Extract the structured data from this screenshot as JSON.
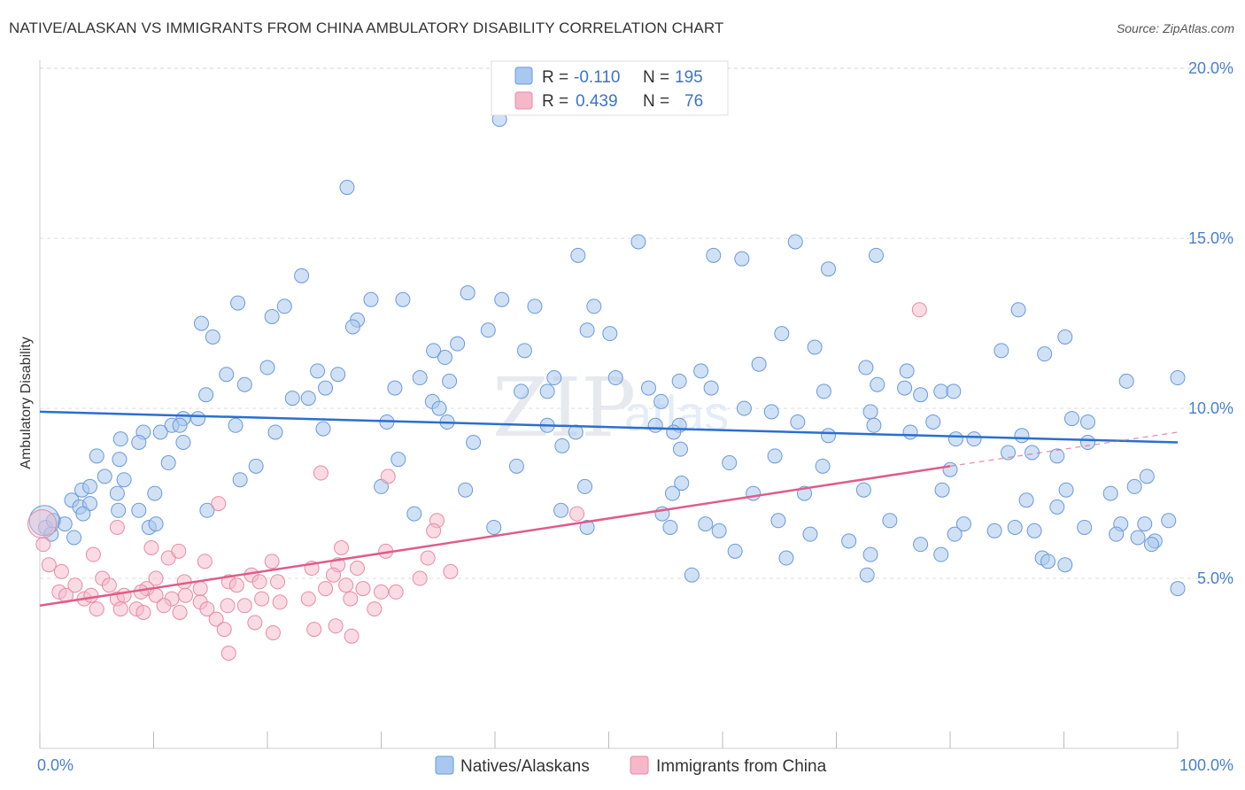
{
  "title": "NATIVE/ALASKAN VS IMMIGRANTS FROM CHINA AMBULATORY DISABILITY CORRELATION CHART",
  "source": "Source: ZipAtlas.com",
  "watermark": {
    "zip": "ZIP",
    "atlas": "atlas"
  },
  "legend": {
    "r_label": "R =",
    "n_label": "N =",
    "series1": {
      "r": "-0.110",
      "n": "195"
    },
    "series2": {
      "r": "0.439",
      "n": "76"
    }
  },
  "colors": {
    "blue_fill": "#a9c8ef",
    "blue_stroke": "#6a9ad8",
    "blue_line": "#2a6fd0",
    "pink_fill": "#f5b8c9",
    "pink_stroke": "#e88aa6",
    "pink_line": "#e05c8a",
    "tick_text": "#4a7fd0",
    "grid": "#dddddd"
  },
  "chart_data": {
    "type": "scatter",
    "xlabel": "",
    "ylabel": "Ambulatory Disability",
    "xlim": [
      0,
      100
    ],
    "ylim": [
      0,
      20.5
    ],
    "x_tick_labels": [
      "0.0%",
      "100.0%"
    ],
    "y_ticks": [
      5,
      10,
      15,
      20
    ],
    "y_tick_labels": [
      "5.0%",
      "10.0%",
      "15.0%",
      "20.0%"
    ],
    "grid": true,
    "legend_position": "top-center",
    "series": [
      {
        "name": "Natives/Alaskans",
        "color": "#a9c8ef",
        "trend": {
          "x": [
            0,
            100
          ],
          "y": [
            9.9,
            9.0
          ],
          "dashed_from": null
        },
        "points": [
          [
            40.4,
            18.5
          ],
          [
            27.0,
            16.5
          ],
          [
            52.6,
            14.9
          ],
          [
            66.4,
            14.9
          ],
          [
            47.3,
            14.5
          ],
          [
            59.2,
            14.5
          ],
          [
            61.7,
            14.4
          ],
          [
            73.5,
            14.5
          ],
          [
            69.3,
            14.1
          ],
          [
            23.0,
            13.9
          ],
          [
            37.6,
            13.4
          ],
          [
            40.6,
            13.2
          ],
          [
            17.4,
            13.1
          ],
          [
            31.9,
            13.2
          ],
          [
            29.1,
            13.2
          ],
          [
            21.5,
            13.0
          ],
          [
            43.5,
            13.0
          ],
          [
            48.7,
            13.0
          ],
          [
            86.0,
            12.9
          ],
          [
            20.4,
            12.7
          ],
          [
            27.9,
            12.6
          ],
          [
            14.2,
            12.5
          ],
          [
            27.5,
            12.4
          ],
          [
            39.4,
            12.3
          ],
          [
            48.1,
            12.3
          ],
          [
            50.1,
            12.2
          ],
          [
            15.2,
            12.1
          ],
          [
            65.2,
            12.2
          ],
          [
            90.1,
            12.1
          ],
          [
            36.7,
            11.9
          ],
          [
            68.1,
            11.8
          ],
          [
            34.6,
            11.7
          ],
          [
            42.6,
            11.7
          ],
          [
            84.5,
            11.7
          ],
          [
            88.3,
            11.6
          ],
          [
            35.6,
            11.5
          ],
          [
            63.2,
            11.3
          ],
          [
            58.1,
            11.1
          ],
          [
            72.6,
            11.2
          ],
          [
            76.2,
            11.1
          ],
          [
            24.4,
            11.1
          ],
          [
            20.0,
            11.2
          ],
          [
            16.4,
            11.0
          ],
          [
            26.2,
            11.0
          ],
          [
            33.4,
            10.9
          ],
          [
            36.0,
            10.8
          ],
          [
            45.2,
            10.9
          ],
          [
            50.6,
            10.9
          ],
          [
            56.2,
            10.8
          ],
          [
            73.6,
            10.7
          ],
          [
            95.5,
            10.8
          ],
          [
            100.0,
            10.9
          ],
          [
            18.0,
            10.7
          ],
          [
            25.1,
            10.6
          ],
          [
            31.2,
            10.6
          ],
          [
            42.3,
            10.5
          ],
          [
            44.6,
            10.5
          ],
          [
            53.5,
            10.6
          ],
          [
            59.0,
            10.6
          ],
          [
            68.9,
            10.5
          ],
          [
            76.0,
            10.6
          ],
          [
            77.4,
            10.4
          ],
          [
            79.2,
            10.5
          ],
          [
            80.3,
            10.5
          ],
          [
            14.6,
            10.4
          ],
          [
            22.2,
            10.3
          ],
          [
            23.6,
            10.3
          ],
          [
            34.5,
            10.2
          ],
          [
            54.6,
            10.2
          ],
          [
            61.9,
            10.0
          ],
          [
            64.3,
            9.9
          ],
          [
            73.0,
            9.9
          ],
          [
            35.1,
            10.0
          ],
          [
            12.6,
            9.7
          ],
          [
            13.9,
            9.7
          ],
          [
            11.6,
            9.5
          ],
          [
            12.3,
            9.5
          ],
          [
            17.2,
            9.5
          ],
          [
            30.5,
            9.6
          ],
          [
            35.8,
            9.6
          ],
          [
            44.6,
            9.5
          ],
          [
            54.1,
            9.5
          ],
          [
            56.2,
            9.5
          ],
          [
            66.6,
            9.6
          ],
          [
            73.3,
            9.5
          ],
          [
            78.5,
            9.6
          ],
          [
            90.7,
            9.7
          ],
          [
            92.1,
            9.6
          ],
          [
            9.1,
            9.3
          ],
          [
            10.6,
            9.3
          ],
          [
            20.7,
            9.3
          ],
          [
            24.9,
            9.4
          ],
          [
            47.1,
            9.3
          ],
          [
            55.7,
            9.3
          ],
          [
            69.3,
            9.2
          ],
          [
            76.5,
            9.3
          ],
          [
            80.5,
            9.1
          ],
          [
            82.1,
            9.1
          ],
          [
            86.3,
            9.2
          ],
          [
            92.1,
            9.0
          ],
          [
            7.1,
            9.1
          ],
          [
            8.7,
            9.0
          ],
          [
            12.6,
            9.0
          ],
          [
            38.1,
            9.0
          ],
          [
            45.9,
            8.9
          ],
          [
            56.3,
            8.8
          ],
          [
            64.6,
            8.6
          ],
          [
            85.1,
            8.7
          ],
          [
            87.2,
            8.7
          ],
          [
            89.4,
            8.6
          ],
          [
            5.0,
            8.6
          ],
          [
            7.0,
            8.5
          ],
          [
            11.3,
            8.4
          ],
          [
            19.0,
            8.3
          ],
          [
            31.5,
            8.5
          ],
          [
            41.9,
            8.3
          ],
          [
            60.6,
            8.4
          ],
          [
            68.8,
            8.3
          ],
          [
            80.0,
            8.2
          ],
          [
            97.3,
            8.0
          ],
          [
            5.7,
            8.0
          ],
          [
            7.4,
            7.9
          ],
          [
            17.6,
            7.9
          ],
          [
            30.0,
            7.7
          ],
          [
            37.4,
            7.6
          ],
          [
            47.9,
            7.7
          ],
          [
            56.4,
            7.8
          ],
          [
            62.7,
            7.5
          ],
          [
            90.2,
            7.6
          ],
          [
            94.1,
            7.5
          ],
          [
            96.2,
            7.7
          ],
          [
            3.7,
            7.6
          ],
          [
            4.4,
            7.7
          ],
          [
            6.8,
            7.5
          ],
          [
            10.1,
            7.5
          ],
          [
            55.6,
            7.5
          ],
          [
            67.2,
            7.5
          ],
          [
            72.4,
            7.6
          ],
          [
            79.3,
            7.6
          ],
          [
            86.7,
            7.3
          ],
          [
            89.4,
            7.1
          ],
          [
            2.8,
            7.3
          ],
          [
            3.5,
            7.1
          ],
          [
            4.4,
            7.2
          ],
          [
            6.9,
            7.0
          ],
          [
            8.7,
            7.0
          ],
          [
            14.7,
            7.0
          ],
          [
            32.9,
            6.9
          ],
          [
            45.8,
            7.0
          ],
          [
            54.7,
            6.9
          ],
          [
            58.5,
            6.6
          ],
          [
            64.9,
            6.7
          ],
          [
            74.7,
            6.7
          ],
          [
            81.2,
            6.6
          ],
          [
            91.8,
            6.5
          ],
          [
            95.0,
            6.6
          ],
          [
            97.1,
            6.6
          ],
          [
            99.2,
            6.7
          ],
          [
            0.5,
            6.5
          ],
          [
            1.2,
            6.7
          ],
          [
            2.2,
            6.6
          ],
          [
            9.6,
            6.5
          ],
          [
            10.2,
            6.6
          ],
          [
            39.9,
            6.5
          ],
          [
            48.1,
            6.5
          ],
          [
            55.4,
            6.5
          ],
          [
            59.7,
            6.4
          ],
          [
            67.7,
            6.3
          ],
          [
            80.4,
            6.3
          ],
          [
            83.9,
            6.4
          ],
          [
            85.7,
            6.5
          ],
          [
            87.4,
            6.4
          ],
          [
            94.6,
            6.3
          ],
          [
            96.5,
            6.2
          ],
          [
            98.0,
            6.1
          ],
          [
            1.0,
            6.3
          ],
          [
            3.0,
            6.2
          ],
          [
            71.1,
            6.1
          ],
          [
            77.4,
            6.0
          ],
          [
            97.7,
            6.0
          ],
          [
            61.1,
            5.8
          ],
          [
            73.0,
            5.7
          ],
          [
            79.2,
            5.7
          ],
          [
            88.1,
            5.6
          ],
          [
            88.6,
            5.5
          ],
          [
            90.1,
            5.4
          ],
          [
            57.3,
            5.1
          ],
          [
            72.7,
            5.1
          ],
          [
            100.0,
            4.7
          ],
          [
            65.6,
            5.6
          ],
          [
            3.8,
            6.9
          ]
        ]
      },
      {
        "name": "Immigrants from China",
        "color": "#f5b8c9",
        "trend": {
          "x": [
            0,
            80,
            100
          ],
          "y": [
            4.2,
            8.3,
            9.3
          ],
          "dashed_from": 80
        },
        "points": [
          [
            77.3,
            12.9
          ],
          [
            24.7,
            8.1
          ],
          [
            30.6,
            8.0
          ],
          [
            15.7,
            7.2
          ],
          [
            34.9,
            6.7
          ],
          [
            47.2,
            6.9
          ],
          [
            34.6,
            6.4
          ],
          [
            6.8,
            6.5
          ],
          [
            26.5,
            5.9
          ],
          [
            30.4,
            5.8
          ],
          [
            34.1,
            5.6
          ],
          [
            4.7,
            5.7
          ],
          [
            9.8,
            5.9
          ],
          [
            11.3,
            5.6
          ],
          [
            12.2,
            5.8
          ],
          [
            14.5,
            5.5
          ],
          [
            20.4,
            5.5
          ],
          [
            23.9,
            5.3
          ],
          [
            26.2,
            5.4
          ],
          [
            27.9,
            5.3
          ],
          [
            25.8,
            5.1
          ],
          [
            18.6,
            5.1
          ],
          [
            0.8,
            5.4
          ],
          [
            1.9,
            5.2
          ],
          [
            5.5,
            5.0
          ],
          [
            6.1,
            4.8
          ],
          [
            9.4,
            4.7
          ],
          [
            10.2,
            5.0
          ],
          [
            12.7,
            4.9
          ],
          [
            14.1,
            4.7
          ],
          [
            16.6,
            4.9
          ],
          [
            17.3,
            4.8
          ],
          [
            19.3,
            4.9
          ],
          [
            20.9,
            4.9
          ],
          [
            26.9,
            4.8
          ],
          [
            28.4,
            4.7
          ],
          [
            30.0,
            4.6
          ],
          [
            31.3,
            4.6
          ],
          [
            33.4,
            5.0
          ],
          [
            36.1,
            5.2
          ],
          [
            1.7,
            4.6
          ],
          [
            2.3,
            4.5
          ],
          [
            3.1,
            4.8
          ],
          [
            3.9,
            4.4
          ],
          [
            4.5,
            4.5
          ],
          [
            6.8,
            4.4
          ],
          [
            7.4,
            4.5
          ],
          [
            8.9,
            4.6
          ],
          [
            10.2,
            4.5
          ],
          [
            11.6,
            4.4
          ],
          [
            12.8,
            4.5
          ],
          [
            14.1,
            4.3
          ],
          [
            16.5,
            4.2
          ],
          [
            18.0,
            4.2
          ],
          [
            19.5,
            4.4
          ],
          [
            21.1,
            4.3
          ],
          [
            23.6,
            4.4
          ],
          [
            25.1,
            4.7
          ],
          [
            27.3,
            4.4
          ],
          [
            29.4,
            4.1
          ],
          [
            5.0,
            4.1
          ],
          [
            7.1,
            4.1
          ],
          [
            8.5,
            4.1
          ],
          [
            9.1,
            4.0
          ],
          [
            10.9,
            4.2
          ],
          [
            12.3,
            4.0
          ],
          [
            14.7,
            4.1
          ],
          [
            15.5,
            3.8
          ],
          [
            16.2,
            3.5
          ],
          [
            18.9,
            3.7
          ],
          [
            20.5,
            3.4
          ],
          [
            24.1,
            3.5
          ],
          [
            26.0,
            3.6
          ],
          [
            27.4,
            3.3
          ],
          [
            16.6,
            2.8
          ],
          [
            0.3,
            6.0
          ]
        ]
      }
    ]
  },
  "bottom_legend": {
    "series1": "Natives/Alaskans",
    "series2": "Immigrants from China"
  }
}
